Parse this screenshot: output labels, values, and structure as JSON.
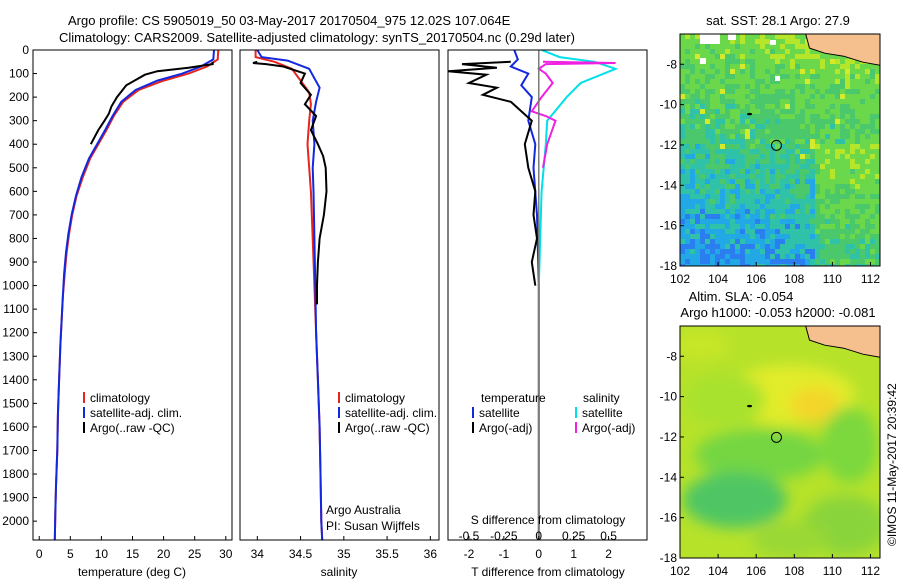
{
  "header": {
    "title_line1": "Argo profile: CS 5905019_50 03-May-2017 20170504_975 12.02S 107.064E",
    "title_line2": "Climatology: CARS2009. Satellite-adjusted climatology: synTS_20170504.nc (0.29d later)"
  },
  "colors": {
    "climatology": "#e8241e",
    "satellite": "#1228e0",
    "argo": "#000000",
    "sat_t_diff": "#00e0e8",
    "argo_s_diff": "#f020e0",
    "land": "#f5c08e"
  },
  "chart_data": [
    {
      "type": "line",
      "name": "temperature-profile",
      "xlabel": "temperature (deg C)",
      "ylabel": "",
      "xlim": [
        -1,
        31
      ],
      "ylim": [
        2080,
        0
      ],
      "xticks": [
        0,
        5,
        10,
        15,
        20,
        25,
        30
      ],
      "yticks": [
        0,
        100,
        200,
        300,
        400,
        500,
        600,
        700,
        800,
        900,
        1000,
        1100,
        1200,
        1300,
        1400,
        1500,
        1600,
        1700,
        1800,
        1900,
        2000
      ],
      "legend": [
        "climatology",
        "satellite-adj. clim.",
        "Argo(..raw -QC)"
      ],
      "series": [
        {
          "name": "climatology",
          "color": "#e8241e",
          "x": [
            28.8,
            28.7,
            27,
            24,
            20,
            16,
            13.5,
            12,
            10.8,
            9.5,
            8.2,
            7,
            6,
            5.3,
            4.8,
            4.4,
            4.1,
            3.8,
            3.6,
            3.4,
            3.2,
            3,
            2.9,
            2.7,
            2.6,
            2.5
          ],
          "y": [
            0,
            40,
            70,
            100,
            130,
            170,
            220,
            280,
            340,
            400,
            460,
            540,
            620,
            700,
            780,
            860,
            950,
            1050,
            1150,
            1250,
            1400,
            1550,
            1700,
            1850,
            1950,
            2080
          ]
        },
        {
          "name": "satellite-adj. clim.",
          "color": "#1228e0",
          "x": [
            28.1,
            28.0,
            26,
            23,
            19,
            15.5,
            13.2,
            11.8,
            10.6,
            9.3,
            8,
            6.8,
            5.9,
            5.2,
            4.7,
            4.3,
            4,
            3.8,
            3.6,
            3.4,
            3.2,
            3,
            2.9,
            2.7,
            2.6,
            2.5
          ],
          "y": [
            0,
            40,
            70,
            100,
            130,
            170,
            220,
            280,
            340,
            400,
            460,
            540,
            620,
            700,
            780,
            860,
            950,
            1050,
            1150,
            1250,
            1400,
            1550,
            1700,
            1850,
            1950,
            2080
          ]
        },
        {
          "name": "Argo(..raw -QC)",
          "color": "#000000",
          "x": [
            27.9,
            27.9,
            24,
            19,
            17,
            14,
            12.5,
            11.6,
            11.2,
            10.5,
            9.5,
            8.3
          ],
          "y": [
            50,
            60,
            75,
            90,
            105,
            150,
            200,
            240,
            270,
            300,
            340,
            400
          ]
        }
      ]
    },
    {
      "type": "line",
      "name": "salinity-profile",
      "xlabel": "salinity",
      "ylabel": "",
      "xlim": [
        33.8,
        36.1
      ],
      "ylim": [
        2080,
        0
      ],
      "xticks": [
        34,
        34.5,
        35,
        35.5,
        36
      ],
      "legend": [
        "climatology",
        "satellite-adj. clim.",
        "Argo(..raw -QC)"
      ],
      "annotation": [
        "Argo Australia",
        "PI: Susan Wijffels"
      ],
      "series": [
        {
          "name": "climatology",
          "color": "#e8241e",
          "x": [
            33.98,
            33.98,
            34.2,
            34.4,
            34.5,
            34.6,
            34.62,
            34.6,
            34.58,
            34.6,
            34.62,
            34.64,
            34.66,
            34.68,
            34.7,
            34.72,
            34.73,
            34.74,
            34.75
          ],
          "y": [
            0,
            30,
            50,
            80,
            130,
            180,
            230,
            300,
            400,
            500,
            600,
            800,
            1000,
            1200,
            1400,
            1600,
            1800,
            2000,
            2080
          ]
        },
        {
          "name": "satellite-adj. clim.",
          "color": "#1228e0",
          "x": [
            34.0,
            34.05,
            34.35,
            34.6,
            34.66,
            34.72,
            34.68,
            34.64,
            34.66,
            34.64,
            34.65,
            34.66,
            34.67,
            34.68,
            34.7,
            34.72,
            34.73,
            34.74,
            34.75
          ],
          "y": [
            0,
            30,
            45,
            80,
            120,
            160,
            220,
            300,
            400,
            500,
            600,
            800,
            1000,
            1200,
            1400,
            1600,
            1800,
            2000,
            2080
          ]
        },
        {
          "name": "Argo(..raw -QC)",
          "color": "#000000",
          "x": [
            34.0,
            33.95,
            34.1,
            34.3,
            34.55,
            34.5,
            34.62,
            34.55,
            34.68,
            34.62,
            34.7,
            34.76,
            34.79,
            34.8,
            34.77,
            34.72,
            34.7,
            34.69,
            34.69
          ],
          "y": [
            50,
            55,
            60,
            70,
            100,
            140,
            190,
            230,
            280,
            340,
            400,
            450,
            500,
            600,
            700,
            800,
            900,
            1000,
            1080
          ]
        }
      ]
    },
    {
      "type": "line",
      "name": "difference-profile",
      "xlabel": "T difference from climatology",
      "x2label": "S difference from climatology",
      "xlim": [
        -2.6,
        3.1
      ],
      "x2lim": [
        -0.65,
        0.775
      ],
      "ylim": [
        2080,
        0
      ],
      "xticks": [
        -2,
        -1,
        0,
        1,
        2
      ],
      "x2ticks": [
        -0.5,
        -0.25,
        0,
        0.25,
        0.5
      ],
      "x2ticklabels": [
        "-0.5",
        "-0.25",
        "0",
        "0.25",
        "0.5"
      ],
      "legend_left_title": "temperature",
      "legend_right_title": "salinity",
      "legend_left": [
        "satellite",
        "Argo(-adj)"
      ],
      "legend_right": [
        "satellite",
        "Argo(-adj)"
      ],
      "series": [
        {
          "name": "T satellite",
          "color": "#1228e0",
          "x": [
            -0.7,
            -0.6,
            -0.8,
            -0.3,
            -0.5,
            -0.2,
            -0.3,
            -0.1,
            -0.15,
            -0.05,
            0,
            0
          ],
          "y": [
            0,
            40,
            70,
            100,
            150,
            200,
            300,
            400,
            500,
            700,
            1000,
            2080
          ]
        },
        {
          "name": "T Argo(-adj)",
          "color": "#000000",
          "x": [
            -0.8,
            -2.2,
            -1.2,
            -2.6,
            -1.5,
            -2.0,
            -1.2,
            -1.6,
            -0.8,
            -0.5,
            -0.2,
            -0.4,
            -0.3,
            -0.1,
            -0.15,
            -0.05,
            -0.2,
            -0.1
          ],
          "y": [
            50,
            60,
            75,
            90,
            105,
            140,
            160,
            190,
            220,
            260,
            300,
            400,
            500,
            600,
            700,
            800,
            900,
            1000
          ]
        },
        {
          "name": "S satellite",
          "color": "#00e0e8",
          "x": [
            0.02,
            0.15,
            0.4,
            0.55,
            0.3,
            0.2,
            0.06,
            0.05,
            0.02,
            0,
            0
          ],
          "y": [
            0,
            30,
            50,
            80,
            140,
            200,
            300,
            400,
            600,
            1000,
            2080
          ]
        },
        {
          "name": "S Argo(-adj)",
          "color": "#f020e0",
          "x": [
            0.03,
            0.55,
            0.05,
            0.0,
            0.05,
            0.1,
            0.02,
            -0.05,
            0.05,
            0.12,
            0.06,
            0.03
          ],
          "y": [
            50,
            55,
            60,
            80,
            100,
            140,
            200,
            260,
            280,
            300,
            400,
            500
          ]
        }
      ]
    },
    {
      "type": "heatmap",
      "name": "sst-map",
      "title": "sat. SST: 28.1  Argo: 27.9",
      "xlim": [
        102,
        112.5
      ],
      "ylim": [
        -18,
        -6.5
      ],
      "xticks": [
        102,
        104,
        106,
        108,
        110,
        112
      ],
      "yticks": [
        -8,
        -10,
        -12,
        -14,
        -16,
        -18
      ],
      "argo_position": {
        "lon": 107.064,
        "lat": -12.02
      }
    },
    {
      "type": "heatmap",
      "name": "sla-map",
      "title_line1": "Altim. SLA: -0.054",
      "title_line2": "Argo h1000: -0.053 h2000: -0.081",
      "xlim": [
        102,
        112.5
      ],
      "ylim": [
        -18,
        -6.5
      ],
      "xticks": [
        102,
        104,
        106,
        108,
        110,
        112
      ],
      "yticks": [
        -8,
        -10,
        -12,
        -14,
        -16,
        -18
      ],
      "argo_position": {
        "lon": 107.064,
        "lat": -12.02
      }
    }
  ],
  "footer": {
    "credit": "©IMOS 11-May-2017 20:39:42"
  }
}
